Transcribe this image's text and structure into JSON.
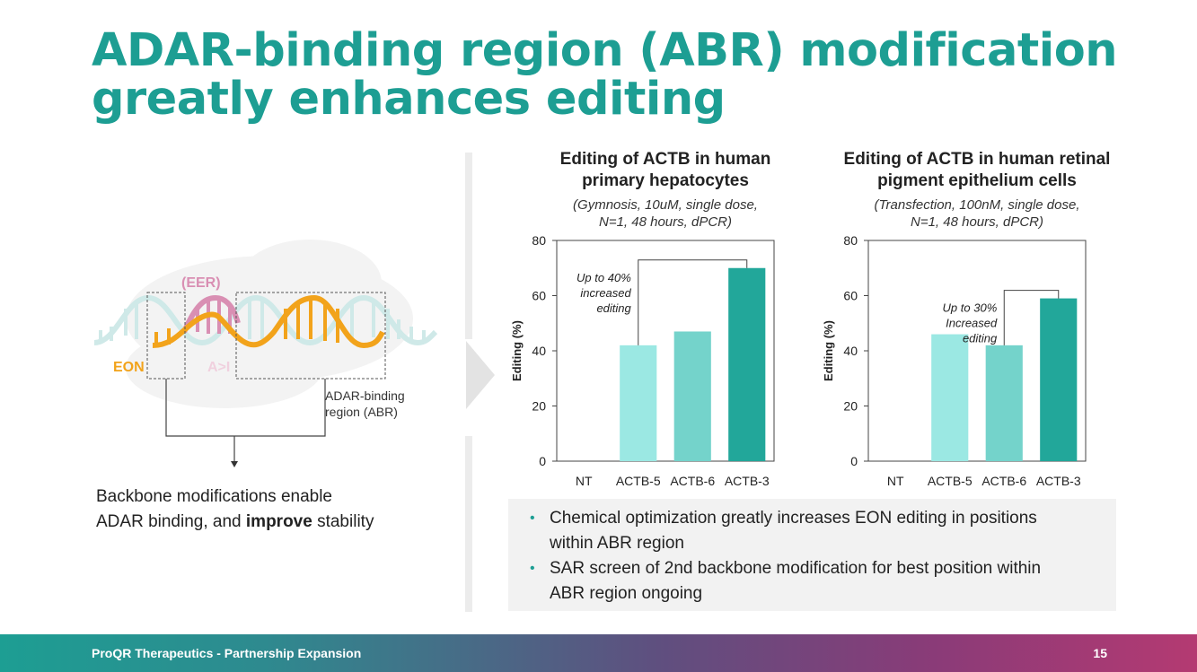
{
  "title": {
    "line1": "ADAR-binding region (ABR) modification",
    "line2": "greatly enhances editing"
  },
  "diagram": {
    "eer_label": "(EER)",
    "eon_label": "EON",
    "ai_label": "A>I",
    "abr_label_line1": "ADAR-binding",
    "abr_label_line2": "region (ABR)"
  },
  "left_text": {
    "part1": "Backbone modifications enable",
    "part2": "ADAR binding, and ",
    "bold": "improve",
    "part3": " stability"
  },
  "chart_data": [
    {
      "type": "bar",
      "title_line1": "Editing of ACTB in human",
      "title_line2": "primary hepatocytes",
      "subtitle_line1": "(Gymnosis, 10uM, single dose,",
      "subtitle_line2": "N=1, 48 hours, dPCR)",
      "ylabel": "Editing (%)",
      "ylim": [
        0,
        80
      ],
      "yticks": [
        0,
        20,
        40,
        60,
        80
      ],
      "categories": [
        "NT",
        "ACTB-5",
        "ACTB-6",
        "ACTB-3"
      ],
      "values": [
        0,
        42,
        47,
        70
      ],
      "colors": [
        "#ffffff",
        "#9be8e3",
        "#74d3cb",
        "#22a79a"
      ],
      "annotation": {
        "lines": [
          "Up to 40%",
          "increased",
          "editing"
        ],
        "from_index": 1,
        "to_index": 3
      }
    },
    {
      "type": "bar",
      "title_line1": "Editing of ACTB in human retinal",
      "title_line2": "pigment epithelium cells",
      "subtitle_line1": "(Transfection, 100nM, single dose,",
      "subtitle_line2": "N=1, 48 hours, dPCR)",
      "ylabel": "Editing (%)",
      "ylim": [
        0,
        80
      ],
      "yticks": [
        0,
        20,
        40,
        60,
        80
      ],
      "categories": [
        "NT",
        "ACTB-5",
        "ACTB-6",
        "ACTB-3"
      ],
      "values": [
        0,
        46,
        42,
        59
      ],
      "colors": [
        "#ffffff",
        "#9be8e3",
        "#74d3cb",
        "#22a79a"
      ],
      "annotation": {
        "lines": [
          "Up to 30%",
          "Increased",
          "editing"
        ],
        "from_index": 2,
        "to_index": 3
      }
    }
  ],
  "bullets": [
    {
      "line1": "Chemical optimization greatly increases EON editing in positions",
      "line2": "within ABR region"
    },
    {
      "line1": "SAR screen of 2nd backbone modification for best position within",
      "line2": "ABR region ongoing"
    }
  ],
  "footer": {
    "text": "ProQR Therapeutics - Partnership Expansion",
    "page": "15"
  },
  "colors": {
    "accent": "#1d9e93",
    "eon_orange": "#f2a31b",
    "eer_pink": "#d98fb3",
    "helix_light": "#cfe9e8"
  }
}
